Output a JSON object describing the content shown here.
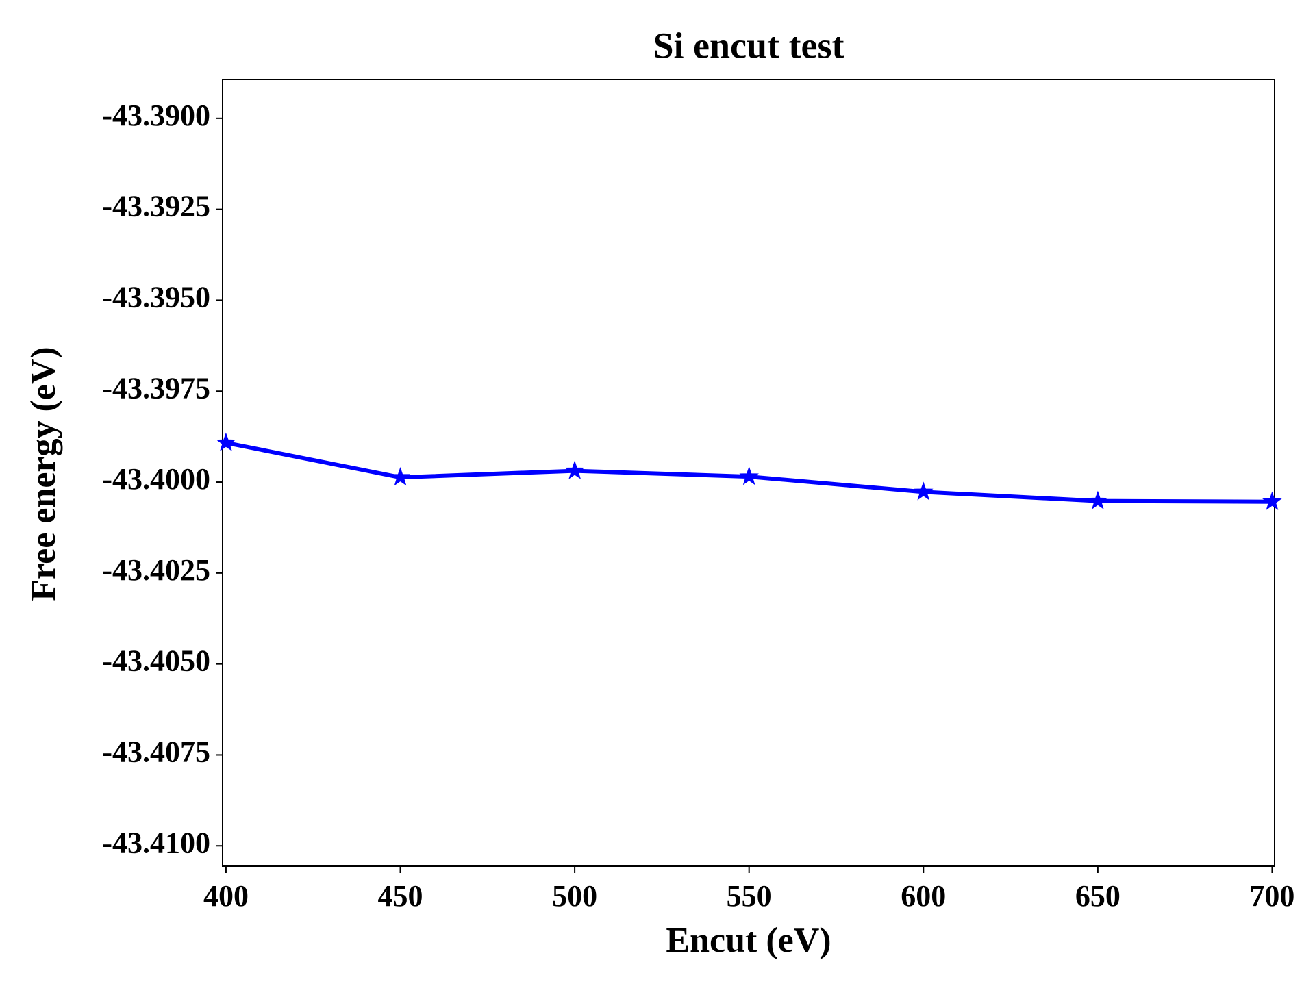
{
  "chart_data": {
    "type": "line",
    "title": "Si encut test",
    "xlabel": "Encut (eV)",
    "ylabel": "Free energy (eV)",
    "x": [
      400,
      450,
      500,
      550,
      600,
      650,
      700
    ],
    "series": [
      {
        "color": "#0000ff",
        "marker": "star",
        "values": [
          -43.39892,
          -43.39987,
          -43.39969,
          -43.39985,
          -43.40027,
          -43.40052,
          -43.40054
        ]
      }
    ],
    "xlim": [
      399.03,
      700.7
    ],
    "xticks": [
      400,
      450,
      500,
      550,
      600,
      650,
      700
    ],
    "ylim": [
      -43.41056,
      -43.38893
    ],
    "yticks": [
      {
        "value": -43.39,
        "label": "-43.3900"
      },
      {
        "value": -43.3925,
        "label": "-43.3925"
      },
      {
        "value": -43.395,
        "label": "-43.3950"
      },
      {
        "value": -43.3975,
        "label": "-43.3975"
      },
      {
        "value": -43.4,
        "label": "-43.4000"
      },
      {
        "value": -43.4025,
        "label": "-43.4025"
      },
      {
        "value": -43.405,
        "label": "-43.4050"
      },
      {
        "value": -43.4075,
        "label": "-43.4075"
      },
      {
        "value": -43.41,
        "label": "-43.4100"
      }
    ],
    "grid": false
  }
}
